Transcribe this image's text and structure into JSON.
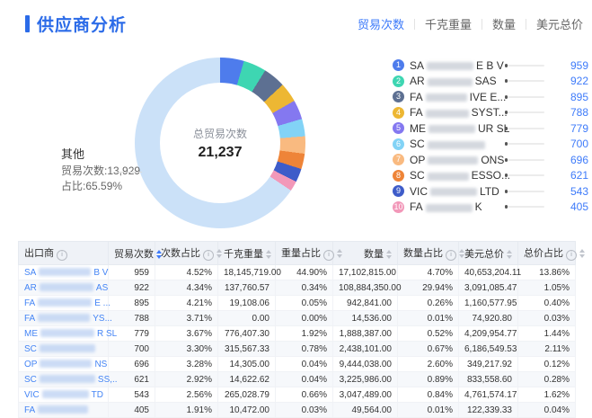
{
  "header": {
    "title": "供应商分析"
  },
  "accent_color": "#3E7BFA",
  "tabs": [
    {
      "label": "贸易次数",
      "active": true
    },
    {
      "label": "千克重量",
      "active": false
    },
    {
      "label": "数量",
      "active": false
    },
    {
      "label": "美元总价",
      "active": false
    }
  ],
  "chart_data": {
    "type": "pie",
    "title": "供应商分析 - 贸易次数",
    "center_label": "总贸易次数",
    "center_value": "21,237",
    "total": 21237,
    "legend_position": "right",
    "series": [
      {
        "name": "SA****** E B V",
        "value": 959,
        "pct": 4.52,
        "color": "#4E7CEC"
      },
      {
        "name": "AR****** SAS",
        "value": 922,
        "pct": 4.34,
        "color": "#3ED6B2"
      },
      {
        "name": "FA****** IVE E…",
        "value": 895,
        "pct": 4.21,
        "color": "#5D7092"
      },
      {
        "name": "FA****** SYST…",
        "value": 788,
        "pct": 3.71,
        "color": "#EDB733"
      },
      {
        "name": "ME****** UR SL",
        "value": 779,
        "pct": 3.67,
        "color": "#8478F0"
      },
      {
        "name": "SC******",
        "value": 700,
        "pct": 3.3,
        "color": "#82D3F6"
      },
      {
        "name": "OP****** ONS",
        "value": 696,
        "pct": 3.28,
        "color": "#F9BA80"
      },
      {
        "name": "SC****** ESSO…",
        "value": 621,
        "pct": 2.92,
        "color": "#EE8438"
      },
      {
        "name": "VIC****** LTD",
        "value": 543,
        "pct": 2.56,
        "color": "#3E5CC9"
      },
      {
        "name": "FA****** K",
        "value": 405,
        "pct": 1.91,
        "color": "#F298B9"
      },
      {
        "name": "其他",
        "value": 13929,
        "pct": 65.59,
        "color": "#CBE1F8"
      }
    ],
    "callout": {
      "name": "其他",
      "line1": "贸易次数:13,929",
      "line2": "占比:65.59%"
    }
  },
  "legend": {
    "items": [
      {
        "rank": 1,
        "prefix": "SA",
        "suffix": "E B V",
        "redact": 52,
        "value": "959",
        "pct": 4.52,
        "color": "#4E7CEC"
      },
      {
        "rank": 2,
        "prefix": "AR",
        "suffix": "SAS",
        "redact": 50,
        "value": "922",
        "pct": 4.34,
        "color": "#3ED6B2"
      },
      {
        "rank": 3,
        "prefix": "FA",
        "suffix": "IVE E...",
        "redact": 46,
        "value": "895",
        "pct": 4.21,
        "color": "#5D7092"
      },
      {
        "rank": 4,
        "prefix": "FA",
        "suffix": "SYST...",
        "redact": 48,
        "value": "788",
        "pct": 3.71,
        "color": "#EDB733"
      },
      {
        "rank": 5,
        "prefix": "ME",
        "suffix": "UR SL",
        "redact": 52,
        "value": "779",
        "pct": 3.67,
        "color": "#8478F0"
      },
      {
        "rank": 6,
        "prefix": "SC",
        "suffix": "",
        "redact": 64,
        "value": "700",
        "pct": 3.3,
        "color": "#82D3F6"
      },
      {
        "rank": 7,
        "prefix": "OP",
        "suffix": "ONS",
        "redact": 56,
        "value": "696",
        "pct": 3.28,
        "color": "#F9BA80"
      },
      {
        "rank": 8,
        "prefix": "SC",
        "suffix": "ESSO...",
        "redact": 46,
        "value": "621",
        "pct": 2.92,
        "color": "#EE8438"
      },
      {
        "rank": 9,
        "prefix": "VIC",
        "suffix": "LTD",
        "redact": 52,
        "value": "543",
        "pct": 2.56,
        "color": "#3E5CC9"
      },
      {
        "rank": 10,
        "prefix": "FA",
        "suffix": "K",
        "redact": 52,
        "value": "405",
        "pct": 1.91,
        "color": "#F298B9"
      }
    ]
  },
  "table": {
    "columns": [
      {
        "key": "exporter",
        "label": "出口商",
        "info": true,
        "sort": false,
        "active": false
      },
      {
        "key": "trade-count",
        "label": "贸易次数",
        "info": false,
        "sort": true,
        "active": true
      },
      {
        "key": "count-pct",
        "label": "次数占比",
        "info": true,
        "sort": true,
        "active": false
      },
      {
        "key": "kg-weight",
        "label": "千克重量",
        "info": false,
        "sort": true,
        "active": false
      },
      {
        "key": "weight-pct",
        "label": "重量占比",
        "info": true,
        "sort": true,
        "active": false
      },
      {
        "key": "quantity",
        "label": "数量",
        "info": false,
        "sort": true,
        "active": false
      },
      {
        "key": "quantity-pct",
        "label": "数量占比",
        "info": true,
        "sort": true,
        "active": false
      },
      {
        "key": "usd-total",
        "label": "美元总价",
        "info": false,
        "sort": true,
        "active": false
      },
      {
        "key": "price-pct",
        "label": "总价占比",
        "info": true,
        "sort": true,
        "active": false
      }
    ],
    "rows": [
      {
        "prefix": "SA",
        "suffix": "B V",
        "redact": 58,
        "cells": [
          "959",
          "4.52%",
          "18,145,719.00",
          "44.90%",
          "17,102,815.00",
          "4.70%",
          "40,653,204.11",
          "13.86%"
        ]
      },
      {
        "prefix": "AR",
        "suffix": "AS",
        "redact": 60,
        "cells": [
          "922",
          "4.34%",
          "137,760.57",
          "0.34%",
          "108,884,350.00",
          "29.94%",
          "3,091,085.47",
          "1.05%"
        ]
      },
      {
        "prefix": "FA",
        "suffix": "E ...",
        "redact": 60,
        "cells": [
          "895",
          "4.21%",
          "19,108.06",
          "0.05%",
          "942,841.00",
          "0.26%",
          "1,160,577.95",
          "0.40%"
        ]
      },
      {
        "prefix": "FA",
        "suffix": "YS...",
        "redact": 58,
        "cells": [
          "788",
          "3.71%",
          "0.00",
          "0.00%",
          "14,536.00",
          "0.01%",
          "74,920.80",
          "0.03%"
        ]
      },
      {
        "prefix": "ME",
        "suffix": "R SL",
        "redact": 60,
        "cells": [
          "779",
          "3.67%",
          "776,407.30",
          "1.92%",
          "1,888,387.00",
          "0.52%",
          "4,209,954.77",
          "1.44%"
        ]
      },
      {
        "prefix": "SC",
        "suffix": "",
        "redact": 62,
        "cells": [
          "700",
          "3.30%",
          "315,567.33",
          "0.78%",
          "2,438,101.00",
          "0.67%",
          "6,186,549.53",
          "2.11%"
        ]
      },
      {
        "prefix": "OP",
        "suffix": "NS",
        "redact": 58,
        "cells": [
          "696",
          "3.28%",
          "14,305.00",
          "0.04%",
          "9,444,038.00",
          "2.60%",
          "349,217.92",
          "0.12%"
        ]
      },
      {
        "prefix": "SC",
        "suffix": "SS,..",
        "redact": 62,
        "cells": [
          "621",
          "2.92%",
          "14,622.62",
          "0.04%",
          "3,225,986.00",
          "0.89%",
          "833,558.60",
          "0.28%"
        ]
      },
      {
        "prefix": "VIC",
        "suffix": "TD",
        "redact": 52,
        "cells": [
          "543",
          "2.56%",
          "265,028.79",
          "0.66%",
          "3,047,489.00",
          "0.84%",
          "4,761,574.17",
          "1.62%"
        ]
      },
      {
        "prefix": "FA",
        "suffix": "",
        "redact": 56,
        "cells": [
          "405",
          "1.91%",
          "10,472.00",
          "0.03%",
          "49,564.00",
          "0.01%",
          "122,339.33",
          "0.04%"
        ]
      }
    ]
  }
}
